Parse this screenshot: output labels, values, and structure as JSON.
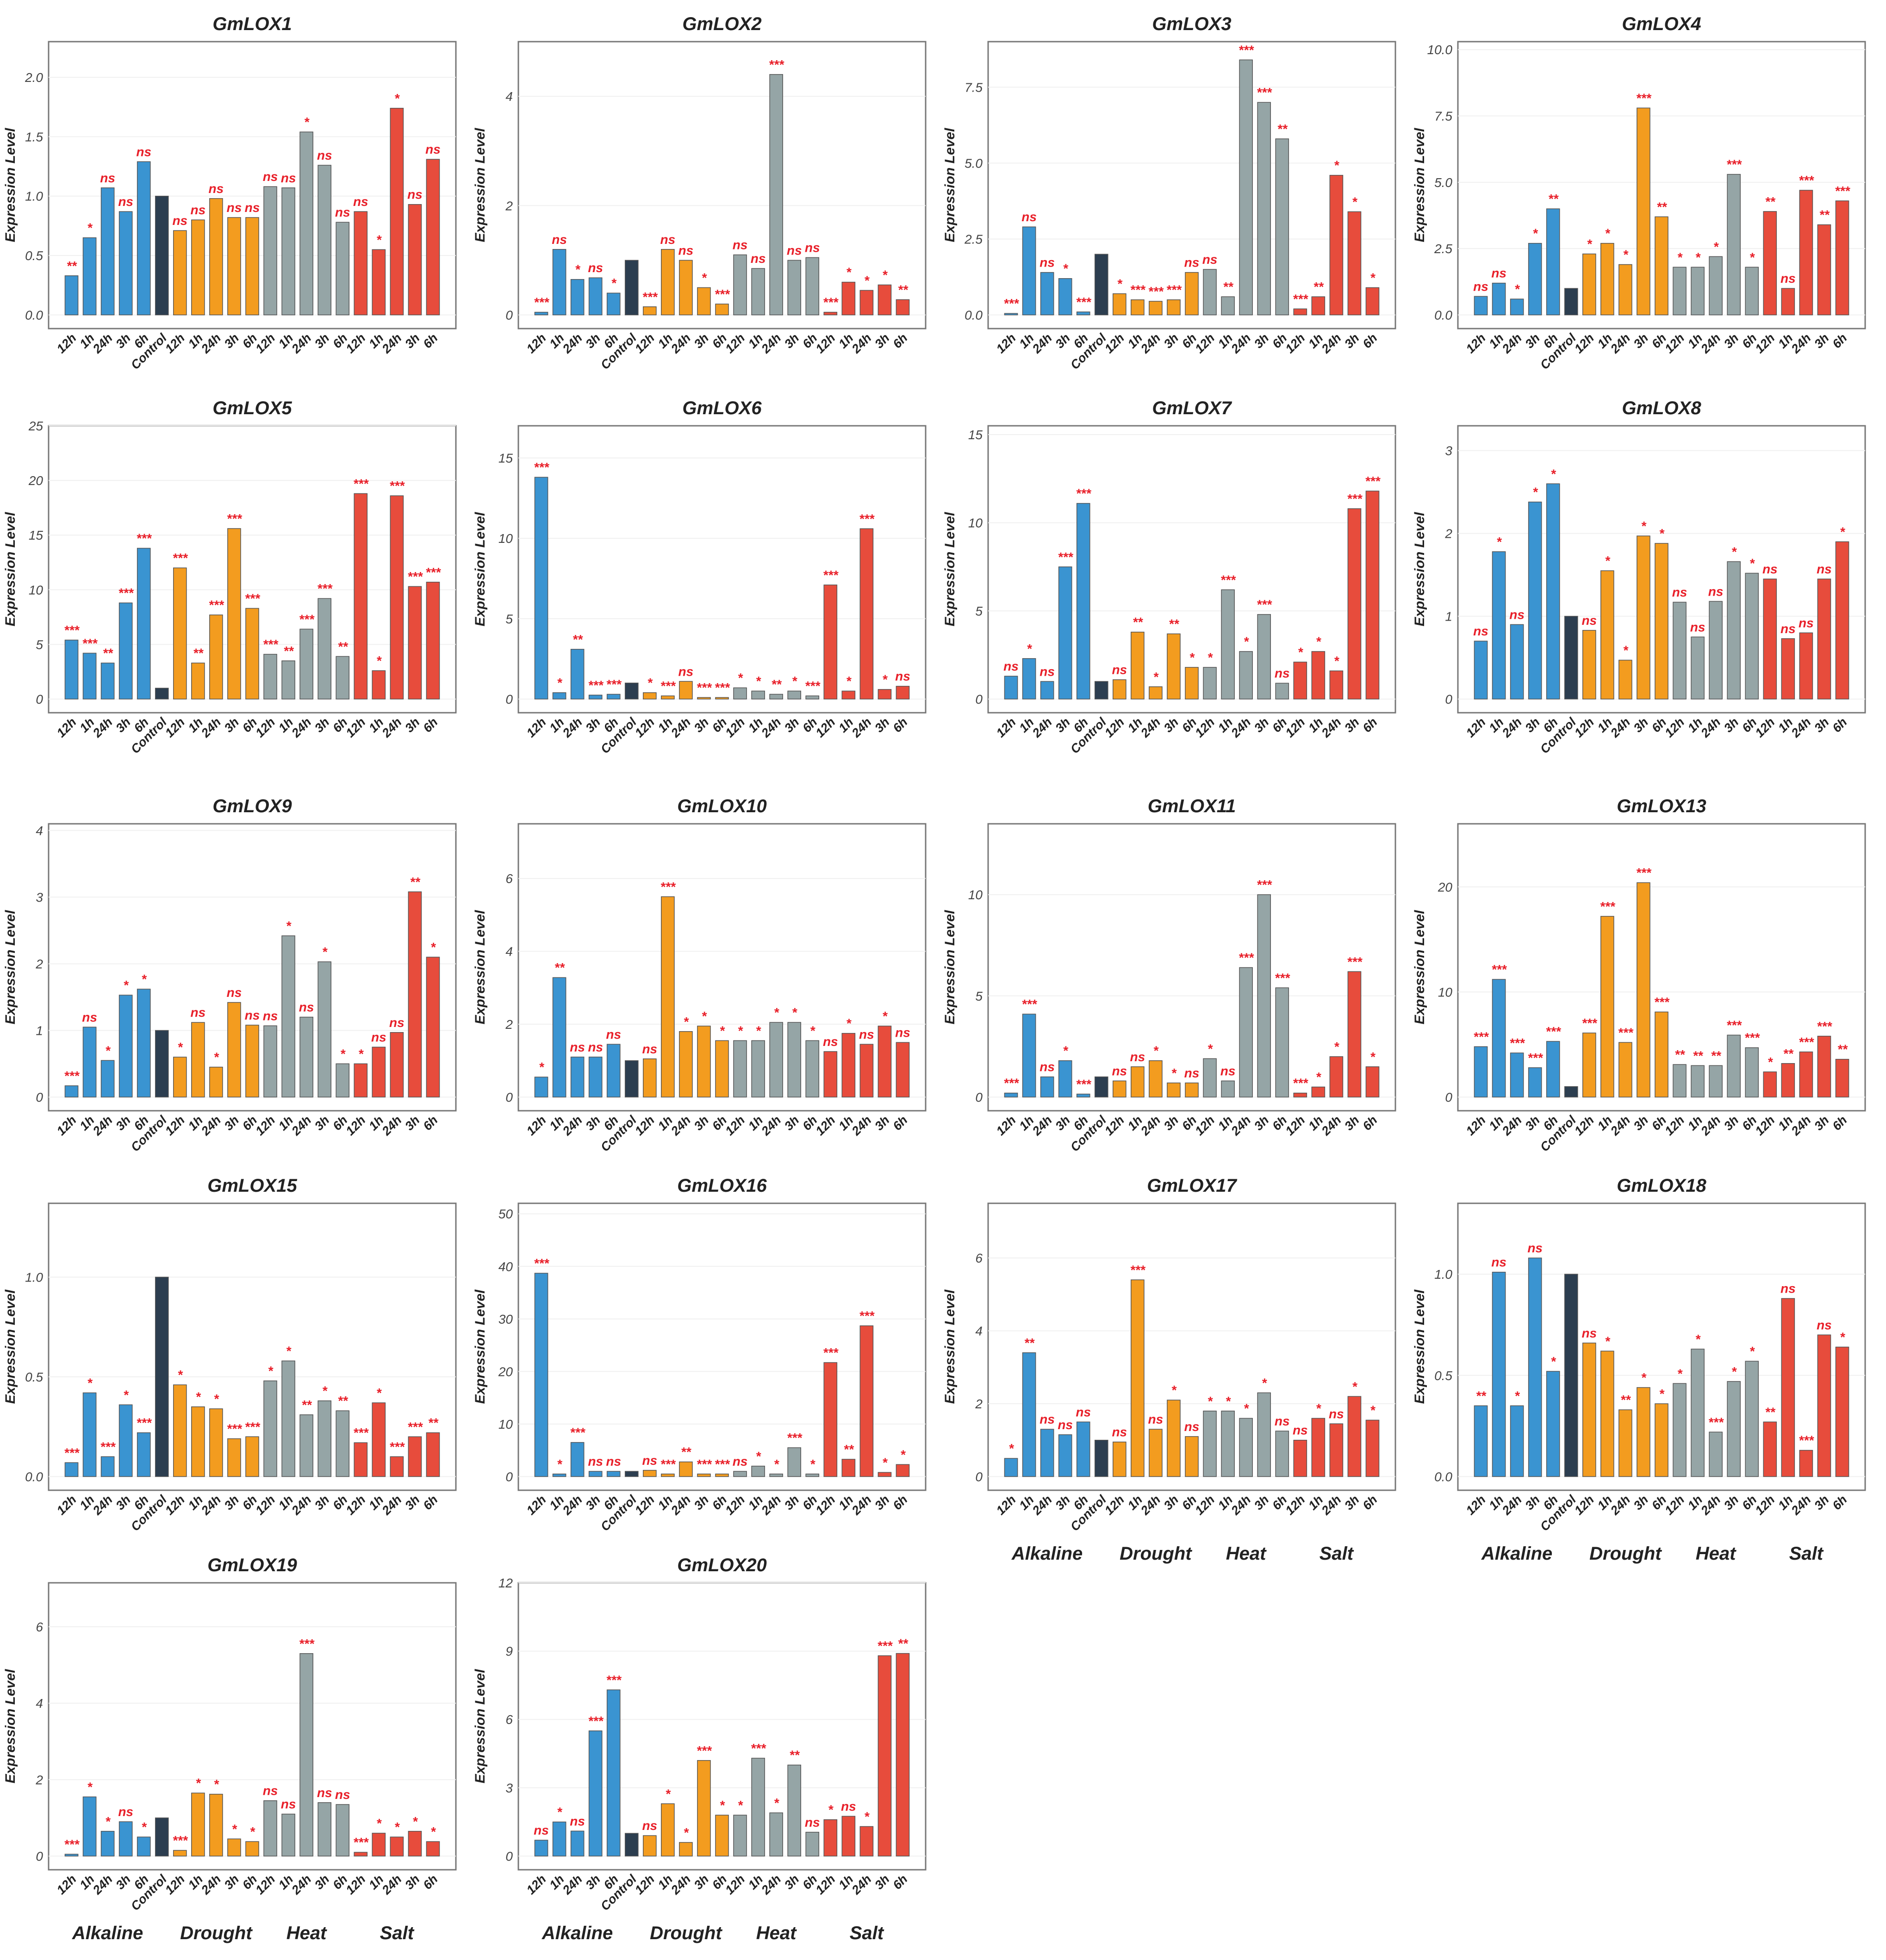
{
  "chart_data": {
    "type": "bar",
    "ylabel": "Expression Level",
    "categories": [
      "12h",
      "1h",
      "24h",
      "3h",
      "6h",
      "Control",
      "12h",
      "1h",
      "24h",
      "3h",
      "6h",
      "12h",
      "1h",
      "24h",
      "3h",
      "6h",
      "12h",
      "1h",
      "24h",
      "3h",
      "6h"
    ],
    "groups": [
      "Alkaline",
      "Alkaline",
      "Alkaline",
      "Alkaline",
      "Alkaline",
      "Control",
      "Drought",
      "Drought",
      "Drought",
      "Drought",
      "Drought",
      "Heat",
      "Heat",
      "Heat",
      "Heat",
      "Heat",
      "Salt",
      "Salt",
      "Salt",
      "Salt",
      "Salt"
    ],
    "group_labels": [
      "Alkaline",
      "Drought",
      "Heat",
      "Salt"
    ],
    "colors": {
      "Alkaline": "#3a94d1",
      "Control": "#2c3e50",
      "Drought": "#f39c1f",
      "Heat": "#95a5a6",
      "Salt": "#e74c3c",
      "sig": "#e8202a"
    },
    "panels": [
      {
        "title": "GmLOX1",
        "ylim": [
          0,
          2.3
        ],
        "ticks": [
          "0.0",
          "0.5",
          "1.0",
          "1.5",
          "2.0"
        ],
        "values": [
          0.33,
          0.65,
          1.07,
          0.87,
          1.29,
          1.0,
          0.71,
          0.8,
          0.98,
          0.82,
          0.82,
          1.08,
          1.07,
          1.54,
          1.26,
          0.78,
          0.87,
          0.55,
          1.74,
          0.93,
          1.31
        ],
        "sig": [
          "**",
          "*",
          "ns",
          "ns",
          "ns",
          "",
          "ns",
          "ns",
          "ns",
          "ns",
          "ns",
          "ns",
          "ns",
          "*",
          "ns",
          "ns",
          "ns",
          "*",
          "*",
          "ns",
          "ns"
        ]
      },
      {
        "title": "GmLOX2",
        "ylim": [
          0,
          5
        ],
        "ticks": [
          "0",
          "2",
          "4"
        ],
        "values": [
          0.05,
          1.2,
          0.65,
          0.68,
          0.4,
          1.0,
          0.15,
          1.2,
          1.0,
          0.5,
          0.2,
          1.1,
          0.85,
          4.4,
          1.0,
          1.05,
          0.05,
          0.6,
          0.45,
          0.55,
          0.28
        ],
        "sig": [
          "***",
          "ns",
          "*",
          "ns",
          "*",
          "",
          "***",
          "ns",
          "ns",
          "*",
          "***",
          "ns",
          "ns",
          "***",
          "ns",
          "ns",
          "***",
          "*",
          "*",
          "*",
          "**"
        ]
      },
      {
        "title": "GmLOX3",
        "ylim": [
          0,
          9
        ],
        "ticks": [
          "0.0",
          "2.5",
          "5.0",
          "7.5"
        ],
        "values": [
          0.05,
          2.9,
          1.4,
          1.2,
          0.1,
          2.0,
          0.7,
          0.5,
          0.45,
          0.5,
          1.4,
          1.5,
          0.6,
          8.4,
          7.0,
          5.8,
          0.2,
          0.6,
          4.6,
          3.4,
          0.9
        ],
        "sig": [
          "***",
          "ns",
          "ns",
          "*",
          "***",
          "",
          "*",
          "***",
          "***",
          "***",
          "ns",
          "ns",
          "**",
          "***",
          "***",
          "**",
          "***",
          "**",
          "*",
          "*",
          "*"
        ]
      },
      {
        "title": "GmLOX4",
        "ylim": [
          0,
          10.3
        ],
        "ticks": [
          "0.0",
          "2.5",
          "5.0",
          "7.5",
          "10.0"
        ],
        "values": [
          0.7,
          1.2,
          0.6,
          2.7,
          4.0,
          1.0,
          2.3,
          2.7,
          1.9,
          7.8,
          3.7,
          1.8,
          1.8,
          2.2,
          5.3,
          1.8,
          3.9,
          1.0,
          4.7,
          3.4,
          4.3
        ],
        "sig": [
          "ns",
          "ns",
          "*",
          "*",
          "**",
          "",
          "*",
          "*",
          "*",
          "***",
          "**",
          "*",
          "*",
          "*",
          "***",
          "*",
          "**",
          "ns",
          "***",
          "**",
          "***"
        ]
      },
      {
        "title": "GmLOX5",
        "ylim": [
          0,
          25
        ],
        "ticks": [
          "0",
          "5",
          "10",
          "15",
          "20",
          "25"
        ],
        "values": [
          5.4,
          4.2,
          3.3,
          8.8,
          13.8,
          1.0,
          12.0,
          3.3,
          7.7,
          15.6,
          8.3,
          4.1,
          3.5,
          6.4,
          9.2,
          3.9,
          18.8,
          2.6,
          18.6,
          10.3,
          10.7
        ],
        "sig": [
          "***",
          "***",
          "**",
          "***",
          "***",
          "",
          "***",
          "**",
          "***",
          "***",
          "***",
          "***",
          "**",
          "***",
          "***",
          "**",
          "***",
          "*",
          "***",
          "***",
          "***"
        ]
      },
      {
        "title": "GmLOX6",
        "ylim": [
          0,
          17
        ],
        "ticks": [
          "0",
          "5",
          "10",
          "15"
        ],
        "values": [
          13.8,
          0.4,
          3.1,
          0.25,
          0.3,
          1.0,
          0.4,
          0.2,
          1.1,
          0.1,
          0.1,
          0.7,
          0.5,
          0.3,
          0.5,
          0.2,
          7.1,
          0.5,
          10.6,
          0.6,
          0.8
        ],
        "sig": [
          "***",
          "*",
          "**",
          "***",
          "***",
          "",
          "*",
          "***",
          "ns",
          "***",
          "***",
          "*",
          "*",
          "**",
          "*",
          "***",
          "***",
          "*",
          "***",
          "*",
          "ns"
        ]
      },
      {
        "title": "GmLOX7",
        "ylim": [
          0,
          15.5
        ],
        "ticks": [
          "0",
          "5",
          "10",
          "15"
        ],
        "values": [
          1.3,
          2.3,
          1.0,
          7.5,
          11.1,
          1.0,
          1.1,
          3.8,
          0.7,
          3.7,
          1.8,
          1.8,
          6.2,
          2.7,
          4.8,
          0.9,
          2.1,
          2.7,
          1.6,
          10.8,
          11.8
        ],
        "sig": [
          "ns",
          "*",
          "ns",
          "***",
          "***",
          "",
          "ns",
          "**",
          "*",
          "**",
          "*",
          "*",
          "***",
          "*",
          "***",
          "ns",
          "*",
          "*",
          "*",
          "***",
          "***"
        ]
      },
      {
        "title": "GmLOX8",
        "ylim": [
          0,
          3.3
        ],
        "ticks": [
          "0",
          "1",
          "2",
          "3"
        ],
        "values": [
          0.7,
          1.78,
          0.9,
          2.38,
          2.6,
          1.0,
          0.83,
          1.55,
          0.47,
          1.97,
          1.88,
          1.17,
          0.75,
          1.18,
          1.66,
          1.52,
          1.45,
          0.73,
          0.8,
          1.45,
          1.9
        ],
        "sig": [
          "ns",
          "*",
          "ns",
          "*",
          "*",
          "",
          "ns",
          "*",
          "*",
          "*",
          "*",
          "ns",
          "ns",
          "ns",
          "*",
          "*",
          "ns",
          "ns",
          "ns",
          "ns",
          "*"
        ]
      },
      {
        "title": "GmLOX9",
        "ylim": [
          0,
          4.1
        ],
        "ticks": [
          "0",
          "1",
          "2",
          "3",
          "4"
        ],
        "values": [
          0.17,
          1.05,
          0.55,
          1.53,
          1.62,
          1.0,
          0.6,
          1.12,
          0.45,
          1.42,
          1.08,
          1.07,
          2.42,
          1.2,
          2.03,
          0.5,
          0.5,
          0.75,
          0.97,
          3.08,
          2.1
        ],
        "sig": [
          "***",
          "ns",
          "*",
          "*",
          "*",
          "",
          "*",
          "ns",
          "*",
          "ns",
          "ns",
          "ns",
          "*",
          "ns",
          "*",
          "*",
          "*",
          "ns",
          "ns",
          "**",
          "*"
        ]
      },
      {
        "title": "GmLOX10",
        "ylim": [
          0,
          7.5
        ],
        "ticks": [
          "0",
          "2",
          "4",
          "6"
        ],
        "values": [
          0.55,
          3.28,
          1.1,
          1.1,
          1.45,
          1.0,
          1.05,
          5.5,
          1.8,
          1.95,
          1.55,
          1.55,
          1.55,
          2.05,
          2.05,
          1.55,
          1.25,
          1.75,
          1.45,
          1.95,
          1.5
        ],
        "sig": [
          "*",
          "**",
          "ns",
          "ns",
          "ns",
          "",
          "ns",
          "***",
          "*",
          "*",
          "*",
          "*",
          "*",
          "*",
          "*",
          "*",
          "ns",
          "*",
          "ns",
          "*",
          "ns"
        ]
      },
      {
        "title": "GmLOX11",
        "ylim": [
          0,
          13.5
        ],
        "ticks": [
          "0",
          "5",
          "10"
        ],
        "values": [
          0.2,
          4.1,
          1.0,
          1.8,
          0.15,
          1.0,
          0.8,
          1.5,
          1.8,
          0.7,
          0.7,
          1.9,
          0.8,
          6.4,
          10.0,
          5.4,
          0.2,
          0.5,
          2.0,
          6.2,
          1.5
        ],
        "sig": [
          "***",
          "***",
          "ns",
          "*",
          "***",
          "",
          "ns",
          "ns",
          "*",
          "*",
          "ns",
          "*",
          "ns",
          "***",
          "***",
          "***",
          "***",
          "*",
          "*",
          "***",
          "*"
        ]
      },
      {
        "title": "GmLOX13",
        "ylim": [
          0,
          26
        ],
        "ticks": [
          "0",
          "10",
          "20"
        ],
        "values": [
          4.8,
          11.2,
          4.2,
          2.8,
          5.3,
          1.0,
          6.1,
          17.2,
          5.2,
          20.4,
          8.1,
          3.1,
          3.0,
          3.0,
          5.9,
          4.7,
          2.4,
          3.2,
          4.3,
          5.8,
          3.6
        ],
        "sig": [
          "***",
          "***",
          "***",
          "***",
          "***",
          "",
          "***",
          "***",
          "***",
          "***",
          "***",
          "**",
          "**",
          "**",
          "***",
          "***",
          "*",
          "**",
          "***",
          "***",
          "**"
        ]
      },
      {
        "title": "GmLOX15",
        "ylim": [
          0,
          1.37
        ],
        "ticks": [
          "0.0",
          "0.5",
          "1.0"
        ],
        "values": [
          0.07,
          0.42,
          0.1,
          0.36,
          0.22,
          1.0,
          0.46,
          0.35,
          0.34,
          0.19,
          0.2,
          0.48,
          0.58,
          0.31,
          0.38,
          0.33,
          0.17,
          0.37,
          0.1,
          0.2,
          0.22
        ],
        "sig": [
          "***",
          "*",
          "***",
          "*",
          "***",
          "",
          "*",
          "*",
          "*",
          "***",
          "***",
          "*",
          "*",
          "**",
          "*",
          "**",
          "***",
          "*",
          "***",
          "***",
          "**"
        ]
      },
      {
        "title": "GmLOX16",
        "ylim": [
          0,
          52
        ],
        "ticks": [
          "0",
          "10",
          "20",
          "30",
          "40",
          "50"
        ],
        "values": [
          38.7,
          0.5,
          6.5,
          1.0,
          1.0,
          1.0,
          1.2,
          0.5,
          2.8,
          0.5,
          0.5,
          1.0,
          2.0,
          0.5,
          5.5,
          0.5,
          21.7,
          3.3,
          28.7,
          0.8,
          2.3
        ],
        "sig": [
          "***",
          "*",
          "***",
          "ns",
          "ns",
          "",
          "ns",
          "***",
          "**",
          "***",
          "***",
          "ns",
          "*",
          "*",
          "***",
          "*",
          "***",
          "**",
          "***",
          "*",
          "*"
        ]
      },
      {
        "title": "GmLOX17",
        "ylim": [
          0,
          7.5
        ],
        "ticks": [
          "0",
          "2",
          "4",
          "6"
        ],
        "values": [
          0.5,
          3.4,
          1.3,
          1.15,
          1.5,
          1.0,
          0.95,
          5.4,
          1.3,
          2.1,
          1.1,
          1.8,
          1.8,
          1.6,
          2.3,
          1.25,
          1.0,
          1.6,
          1.45,
          2.2,
          1.55
        ],
        "sig": [
          "*",
          "**",
          "ns",
          "ns",
          "ns",
          "",
          "ns",
          "***",
          "ns",
          "*",
          "ns",
          "*",
          "*",
          "*",
          "*",
          "ns",
          "ns",
          "*",
          "ns",
          "*",
          "*"
        ],
        "show_groups": true
      },
      {
        "title": "GmLOX18",
        "ylim": [
          0,
          1.35
        ],
        "ticks": [
          "0.0",
          "0.5",
          "1.0"
        ],
        "values": [
          0.35,
          1.01,
          0.35,
          1.08,
          0.52,
          1.0,
          0.66,
          0.62,
          0.33,
          0.44,
          0.36,
          0.46,
          0.63,
          0.22,
          0.47,
          0.57,
          0.27,
          0.88,
          0.13,
          0.7,
          0.64
        ],
        "sig": [
          "**",
          "ns",
          "*",
          "ns",
          "*",
          "",
          "ns",
          "*",
          "**",
          "*",
          "*",
          "*",
          "*",
          "***",
          "*",
          "*",
          "**",
          "ns",
          "***",
          "ns",
          "*"
        ],
        "show_groups": true
      },
      {
        "title": "GmLOX19",
        "ylim": [
          0,
          7.15
        ],
        "ticks": [
          "0",
          "2",
          "4",
          "6"
        ],
        "values": [
          0.05,
          1.55,
          0.65,
          0.9,
          0.5,
          1.0,
          0.15,
          1.65,
          1.62,
          0.45,
          0.38,
          1.45,
          1.1,
          5.3,
          1.4,
          1.35,
          0.1,
          0.6,
          0.5,
          0.65,
          0.38
        ],
        "sig": [
          "***",
          "*",
          "*",
          "ns",
          "*",
          "",
          "***",
          "*",
          "*",
          "*",
          "*",
          "ns",
          "ns",
          "***",
          "ns",
          "ns",
          "***",
          "*",
          "*",
          "*",
          "*"
        ],
        "show_groups": true
      },
      {
        "title": "GmLOX20",
        "ylim": [
          0,
          12
        ],
        "ticks": [
          "0",
          "3",
          "6",
          "9",
          "12"
        ],
        "values": [
          0.7,
          1.5,
          1.1,
          5.5,
          7.3,
          1.0,
          0.9,
          2.3,
          0.6,
          4.2,
          1.8,
          1.8,
          4.3,
          1.9,
          4.0,
          1.05,
          1.6,
          1.75,
          1.3,
          8.8,
          8.9
        ],
        "sig": [
          "ns",
          "*",
          "ns",
          "***",
          "***",
          "",
          "ns",
          "*",
          "*",
          "***",
          "*",
          "*",
          "***",
          "*",
          "**",
          "ns",
          "*",
          "ns",
          "*",
          "***",
          "**"
        ],
        "show_groups": true
      }
    ]
  }
}
